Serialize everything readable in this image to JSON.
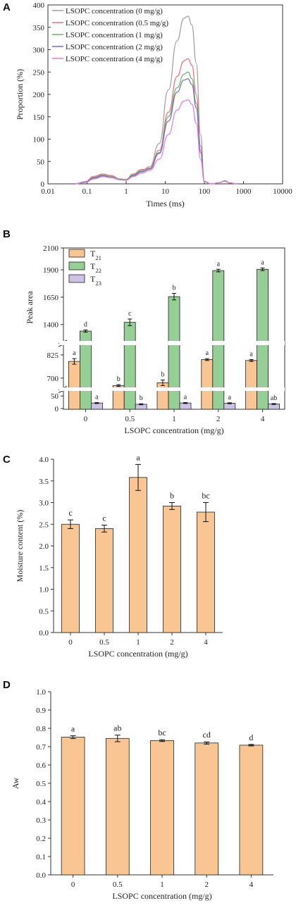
{
  "chart_data": [
    {
      "panel": "A",
      "type": "line",
      "xlabel": "Times (ms)",
      "ylabel": "Proportion (%)",
      "xscale": "log",
      "xlim": [
        0.01,
        10000
      ],
      "ylim": [
        0,
        400
      ],
      "xticks": [
        "0.01",
        "0.1",
        "1",
        "10",
        "100",
        "1000",
        "10000"
      ],
      "yticks": [
        "0",
        "50",
        "100",
        "150",
        "200",
        "250",
        "300",
        "350",
        "400"
      ],
      "legend_position": "top-left",
      "series": [
        {
          "name": "LSOPC concentration (0 mg/g)",
          "color": "#9e9e9e",
          "x": [
            0.05,
            0.09,
            0.15,
            0.25,
            0.4,
            0.7,
            1.0,
            1.5,
            2.5,
            4,
            7,
            12,
            20,
            30,
            38,
            48,
            62,
            80,
            100,
            150,
            250,
            330,
            450,
            700
          ],
          "y": [
            0,
            4,
            15,
            20,
            17,
            10,
            9,
            20,
            30,
            38,
            90,
            210,
            320,
            370,
            375,
            355,
            270,
            110,
            5,
            0,
            3,
            6,
            2,
            0
          ]
        },
        {
          "name": "LSOPC concentration (0.5 mg/g)",
          "color": "#e8727a",
          "x": [
            0.05,
            0.09,
            0.15,
            0.25,
            0.4,
            0.7,
            1.0,
            1.5,
            2.5,
            4,
            7,
            12,
            20,
            30,
            38,
            48,
            62,
            80,
            100,
            150,
            250,
            330,
            450,
            700
          ],
          "y": [
            0,
            5,
            17,
            22,
            19,
            11,
            10,
            22,
            32,
            35,
            75,
            160,
            240,
            275,
            280,
            265,
            200,
            85,
            5,
            0,
            3,
            6,
            2,
            0
          ]
        },
        {
          "name": "LSOPC concentration (1 mg/g)",
          "color": "#6fae6f",
          "x": [
            0.05,
            0.09,
            0.15,
            0.25,
            0.4,
            0.7,
            1.0,
            1.5,
            2.5,
            4,
            7,
            12,
            20,
            30,
            38,
            48,
            62,
            80,
            100,
            150,
            250,
            330,
            450,
            700
          ],
          "y": [
            0,
            4,
            14,
            19,
            16,
            10,
            9,
            20,
            28,
            34,
            70,
            150,
            215,
            245,
            250,
            235,
            180,
            75,
            5,
            0,
            3,
            6,
            2,
            0
          ]
        },
        {
          "name": "LSOPC concentration (2 mg/g)",
          "color": "#6a6cc4",
          "x": [
            0.05,
            0.09,
            0.15,
            0.25,
            0.4,
            0.7,
            1.0,
            1.5,
            2.5,
            4,
            7,
            12,
            20,
            30,
            38,
            48,
            62,
            80,
            100,
            150,
            250,
            330,
            450,
            700
          ],
          "y": [
            0,
            4,
            13,
            18,
            15,
            9,
            8,
            18,
            27,
            33,
            68,
            140,
            205,
            232,
            235,
            222,
            170,
            70,
            5,
            0,
            3,
            7,
            2,
            0
          ]
        },
        {
          "name": "LSOPC concentration (4 mg/g)",
          "color": "#e07be0",
          "x": [
            0.05,
            0.09,
            0.15,
            0.25,
            0.4,
            0.7,
            1.0,
            1.5,
            2.5,
            4,
            7,
            12,
            20,
            30,
            38,
            48,
            62,
            80,
            100,
            150,
            250,
            330,
            450,
            700
          ],
          "y": [
            0,
            3,
            11,
            16,
            14,
            9,
            8,
            16,
            24,
            30,
            55,
            110,
            165,
            185,
            188,
            178,
            135,
            55,
            4,
            0,
            3,
            6,
            2,
            0
          ]
        }
      ]
    },
    {
      "panel": "B",
      "type": "bar",
      "xlabel": "LSOPC concentration (mg/g)",
      "ylabel": "Peak area",
      "categories": [
        "0",
        "0.5",
        "1",
        "2",
        "4"
      ],
      "broken_axis": true,
      "yticks": [
        "0",
        "50",
        "700",
        "825",
        "1400",
        "1650",
        "1900",
        "2100"
      ],
      "legend_position": "top-left",
      "series": [
        {
          "name": "T21",
          "color": "#f9c592",
          "values": [
            790,
            660,
            675,
            800,
            795
          ],
          "errors": [
            15,
            5,
            15,
            5,
            5
          ],
          "letters": [
            "a",
            "b",
            "b",
            "a",
            "a"
          ]
        },
        {
          "name": "T22",
          "color": "#95cf95",
          "values": [
            1340,
            1420,
            1655,
            1893,
            1905
          ],
          "errors": [
            10,
            30,
            30,
            12,
            12
          ],
          "letters": [
            "d",
            "c",
            "b",
            "a",
            "a"
          ]
        },
        {
          "name": "T23",
          "color": "#cfc0e8",
          "values": [
            22,
            17,
            22,
            21,
            18
          ],
          "errors": [
            2,
            2,
            2,
            2,
            2
          ],
          "letters": [
            "a",
            "b",
            "a",
            "a",
            "ab"
          ]
        }
      ]
    },
    {
      "panel": "C",
      "type": "bar",
      "xlabel": "LSOPC concentration (mg/g)",
      "ylabel": "Moisture content (%)",
      "categories": [
        "0",
        "0.5",
        "1",
        "2",
        "4"
      ],
      "ylim": [
        0,
        4.0
      ],
      "yticks": [
        "0.0",
        "0.5",
        "1.0",
        "1.5",
        "2.0",
        "2.5",
        "3.0",
        "3.5",
        "4.0"
      ],
      "color": "#f9c592",
      "values": [
        2.5,
        2.4,
        3.58,
        2.92,
        2.78
      ],
      "errors": [
        0.1,
        0.08,
        0.3,
        0.08,
        0.22
      ],
      "letters": [
        "c",
        "c",
        "a",
        "b",
        "bc"
      ]
    },
    {
      "panel": "D",
      "type": "bar",
      "xlabel": "LSOPC concentration (mg/g)",
      "ylabel": "Aw",
      "categories": [
        "0",
        "0.5",
        "1",
        "2",
        "4"
      ],
      "ylim": [
        0,
        1.0
      ],
      "yticks": [
        "0.0",
        "0.1",
        "0.2",
        "0.3",
        "0.4",
        "0.5",
        "0.6",
        "0.7",
        "0.8",
        "0.9",
        "1.0"
      ],
      "color": "#f9c592",
      "values": [
        0.752,
        0.745,
        0.733,
        0.72,
        0.708
      ],
      "errors": [
        0.008,
        0.018,
        0.005,
        0.006,
        0.004
      ],
      "letters": [
        "a",
        "ab",
        "bc",
        "cd",
        "d"
      ]
    }
  ],
  "labels": {
    "A": "A",
    "B": "B",
    "C": "C",
    "D": "D"
  }
}
